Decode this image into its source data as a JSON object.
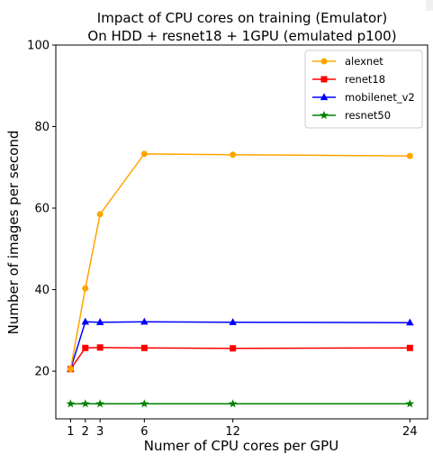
{
  "chart_data": {
    "type": "line",
    "title": "Impact of CPU cores on training (Emulator)",
    "subtitle": "On HDD + resnet18 + 1GPU (emulated p100)",
    "xlabel": "Numer of CPU cores per GPU",
    "ylabel": "Number of images per second",
    "xlim": [
      0,
      25.2
    ],
    "ylim": [
      8.3,
      100
    ],
    "xticks": [
      1,
      2,
      3,
      6,
      12,
      24
    ],
    "yticks": [
      20,
      40,
      60,
      80,
      100
    ],
    "grid": false,
    "legend_position": "top-right",
    "x": [
      1,
      2,
      3,
      6,
      12,
      24
    ],
    "series": [
      {
        "name": "alexnet",
        "values": [
          20.5,
          40.3,
          58.5,
          73.3,
          73.1,
          72.8
        ],
        "color": "#ffa500",
        "marker": "circle"
      },
      {
        "name": "renet18",
        "values": [
          20.5,
          25.7,
          25.8,
          25.7,
          25.6,
          25.7
        ],
        "color": "#ff0000",
        "marker": "square"
      },
      {
        "name": "mobilenet_v2",
        "values": [
          20.5,
          32.1,
          32.0,
          32.1,
          32.0,
          31.9
        ],
        "color": "#0000ff",
        "marker": "triangle"
      },
      {
        "name": "resnet50",
        "values": [
          12.0,
          12.0,
          12.0,
          12.0,
          12.0,
          12.0
        ],
        "color": "#008000",
        "marker": "star"
      }
    ]
  }
}
